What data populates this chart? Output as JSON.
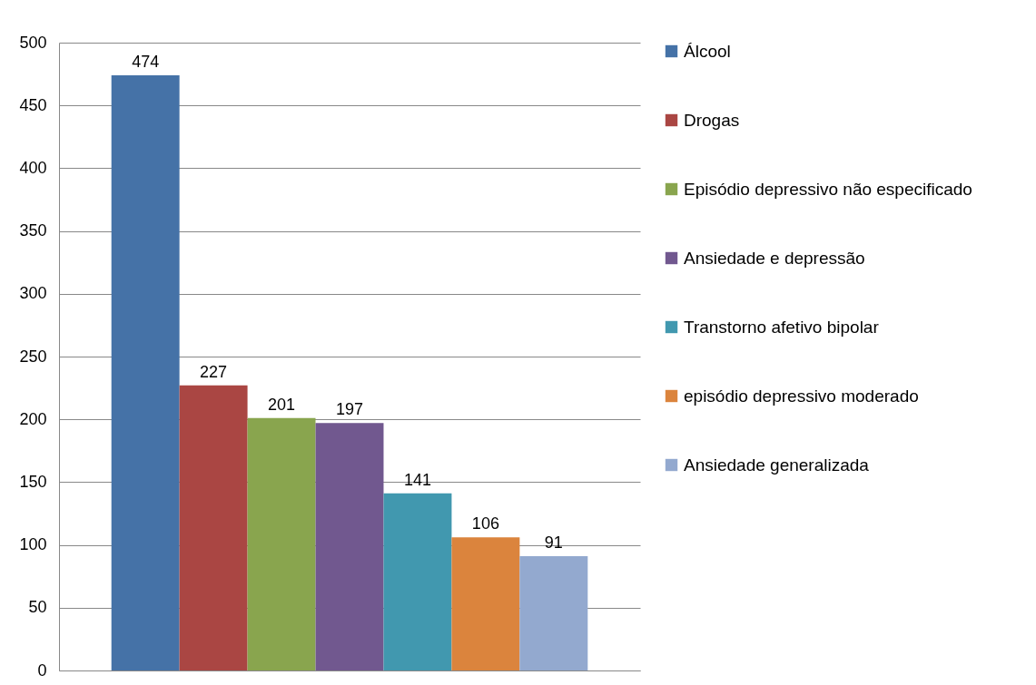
{
  "chart_data": {
    "type": "bar",
    "categories": [
      null
    ],
    "series": [
      {
        "name": "Álcool",
        "color": "#4572a7",
        "values": [
          474
        ]
      },
      {
        "name": "Drogas",
        "color": "#aa4643",
        "values": [
          227
        ]
      },
      {
        "name": "Episódio depressivo não especificado",
        "color": "#89a54e",
        "values": [
          201
        ]
      },
      {
        "name": "Ansiedade e depressão",
        "color": "#71588f",
        "values": [
          197
        ]
      },
      {
        "name": "Transtorno afetivo bipolar",
        "color": "#4198af",
        "values": [
          141
        ]
      },
      {
        "name": "episódio depressivo moderado",
        "color": "#db843d",
        "values": [
          106
        ]
      },
      {
        "name": "Ansiedade generalizada",
        "color": "#93a9cf",
        "values": [
          91
        ]
      }
    ],
    "ylim": [
      0,
      500
    ],
    "yticks": [
      0,
      50,
      100,
      150,
      200,
      250,
      300,
      350,
      400,
      450,
      500
    ],
    "grid": "y",
    "legend": "right",
    "data_labels": true
  }
}
